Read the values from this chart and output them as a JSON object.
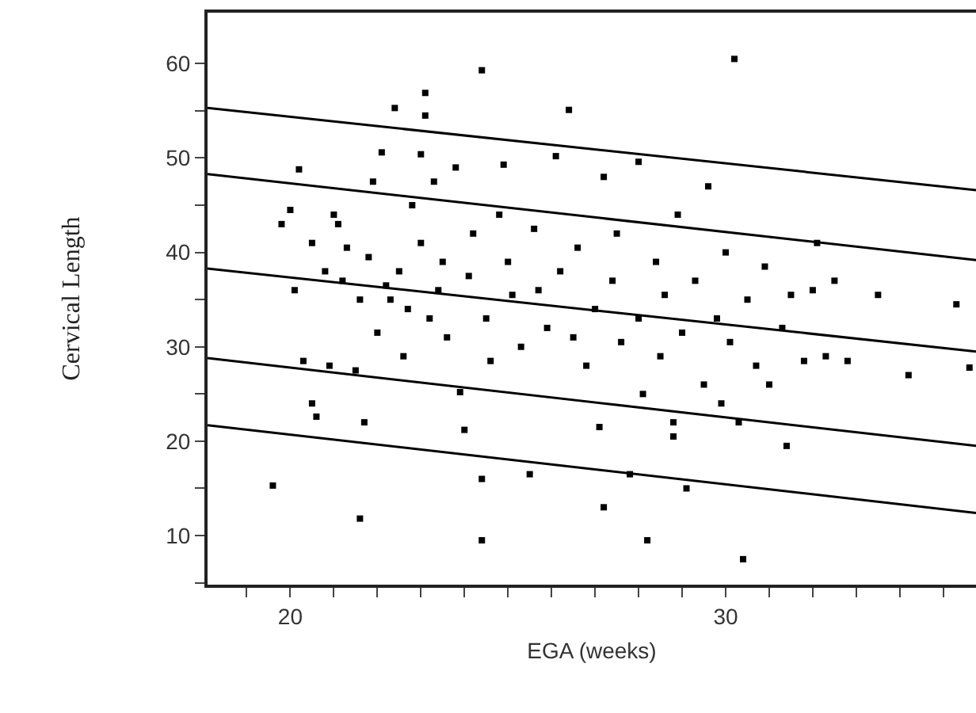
{
  "chart_data": {
    "type": "scatter",
    "xlabel": "EGA (weeks)",
    "ylabel": "Cervical Length",
    "xlim": [
      18.1,
      35.75
    ],
    "ylim": [
      4.8,
      65.4
    ],
    "xticks": [
      {
        "value": 19,
        "label": null
      },
      20,
      {
        "value": 21,
        "label": null
      },
      {
        "value": 22,
        "label": null
      },
      {
        "value": 23,
        "label": null
      },
      {
        "value": 24,
        "label": null
      },
      {
        "value": 25,
        "label": null
      },
      {
        "value": 26,
        "label": null
      },
      {
        "value": 27,
        "label": null
      },
      {
        "value": 28,
        "label": null
      },
      {
        "value": 29,
        "label": null
      },
      30,
      {
        "value": 31,
        "label": null
      },
      {
        "value": 32,
        "label": null
      },
      {
        "value": 33,
        "label": null
      },
      {
        "value": 34,
        "label": null
      },
      {
        "value": 35,
        "label": null
      }
    ],
    "yticks": [
      {
        "value": 5,
        "label": null
      },
      10,
      {
        "value": 15,
        "label": null
      },
      20,
      {
        "value": 25,
        "label": null
      },
      30,
      {
        "value": 35,
        "label": null
      },
      40,
      {
        "value": 45,
        "label": null
      },
      50,
      {
        "value": 55,
        "label": null
      },
      60
    ],
    "series": [
      {
        "marker": "square",
        "color": "#000000",
        "x": [
          19.6,
          19.8,
          20.0,
          20.1,
          20.2,
          20.3,
          20.5,
          20.5,
          20.6,
          20.8,
          20.9,
          21.0,
          21.1,
          21.2,
          21.3,
          21.5,
          21.6,
          21.6,
          21.7,
          21.8,
          21.9,
          22.0,
          22.1,
          22.2,
          22.3,
          22.4,
          22.5,
          22.6,
          22.7,
          22.8,
          23.0,
          23.0,
          23.1,
          23.1,
          23.2,
          23.3,
          23.4,
          23.5,
          23.6,
          23.8,
          23.9,
          24.0,
          24.1,
          24.2,
          24.4,
          24.4,
          24.4,
          24.5,
          24.6,
          24.8,
          24.9,
          25.0,
          25.1,
          25.3,
          25.5,
          25.6,
          25.7,
          25.9,
          26.1,
          26.2,
          26.4,
          26.5,
          26.6,
          26.8,
          27.0,
          27.1,
          27.2,
          27.2,
          27.4,
          27.5,
          27.6,
          27.8,
          28.0,
          28.0,
          28.1,
          28.2,
          28.4,
          28.5,
          28.6,
          28.8,
          28.8,
          28.9,
          29.0,
          29.1,
          29.3,
          29.5,
          29.6,
          29.8,
          29.9,
          30.0,
          30.1,
          30.2,
          30.3,
          30.4,
          30.5,
          30.7,
          30.9,
          31.0,
          31.3,
          31.4,
          31.5,
          31.8,
          32.0,
          32.1,
          32.3,
          32.5,
          32.8,
          33.5,
          34.2,
          35.3,
          35.6
        ],
        "values": [
          15.3,
          43,
          44.5,
          36,
          48.8,
          28.5,
          24,
          41,
          22.6,
          38,
          28,
          44,
          43,
          37,
          40.5,
          27.5,
          11.8,
          35,
          22,
          39.5,
          47.5,
          31.5,
          50.6,
          36.5,
          35,
          55.3,
          38,
          29,
          34,
          45,
          50.4,
          41,
          56.9,
          54.5,
          33,
          47.5,
          36,
          39,
          31,
          49,
          25.2,
          21.2,
          37.5,
          42,
          59.3,
          16,
          9.5,
          33,
          28.5,
          44,
          49.3,
          39,
          35.5,
          30,
          16.5,
          42.5,
          36,
          32,
          50.2,
          38,
          55.1,
          31,
          40.5,
          28,
          34,
          21.5,
          48,
          13,
          37,
          42,
          30.5,
          16.5,
          49.6,
          33,
          25,
          9.5,
          39,
          29,
          35.5,
          20.5,
          22,
          44,
          31.5,
          15,
          37,
          26,
          47,
          33,
          24,
          40,
          30.5,
          60.5,
          22,
          7.5,
          35,
          28,
          38.5,
          26,
          32,
          19.5,
          35.5,
          28.5,
          36,
          41,
          29,
          37,
          28.5,
          35.5,
          27,
          34.5,
          27.8
        ]
      },
      {
        "type": "line",
        "color": "#000000",
        "x": [
          18.1,
          35.75
        ],
        "values": [
          55.3,
          46.6
        ],
        "marker": "none"
      },
      {
        "type": "line",
        "color": "#000000",
        "x": [
          18.1,
          35.75
        ],
        "values": [
          48.3,
          39.2
        ],
        "marker": "none"
      },
      {
        "type": "line",
        "color": "#000000",
        "x": [
          18.1,
          35.75
        ],
        "values": [
          38.3,
          29.5
        ],
        "marker": "none"
      },
      {
        "type": "line",
        "color": "#000000",
        "x": [
          18.1,
          35.75
        ],
        "values": [
          28.8,
          19.5
        ],
        "marker": "none"
      },
      {
        "type": "line",
        "color": "#000000",
        "x": [
          18.1,
          35.75
        ],
        "values": [
          21.7,
          12.4
        ],
        "marker": "none"
      }
    ]
  }
}
